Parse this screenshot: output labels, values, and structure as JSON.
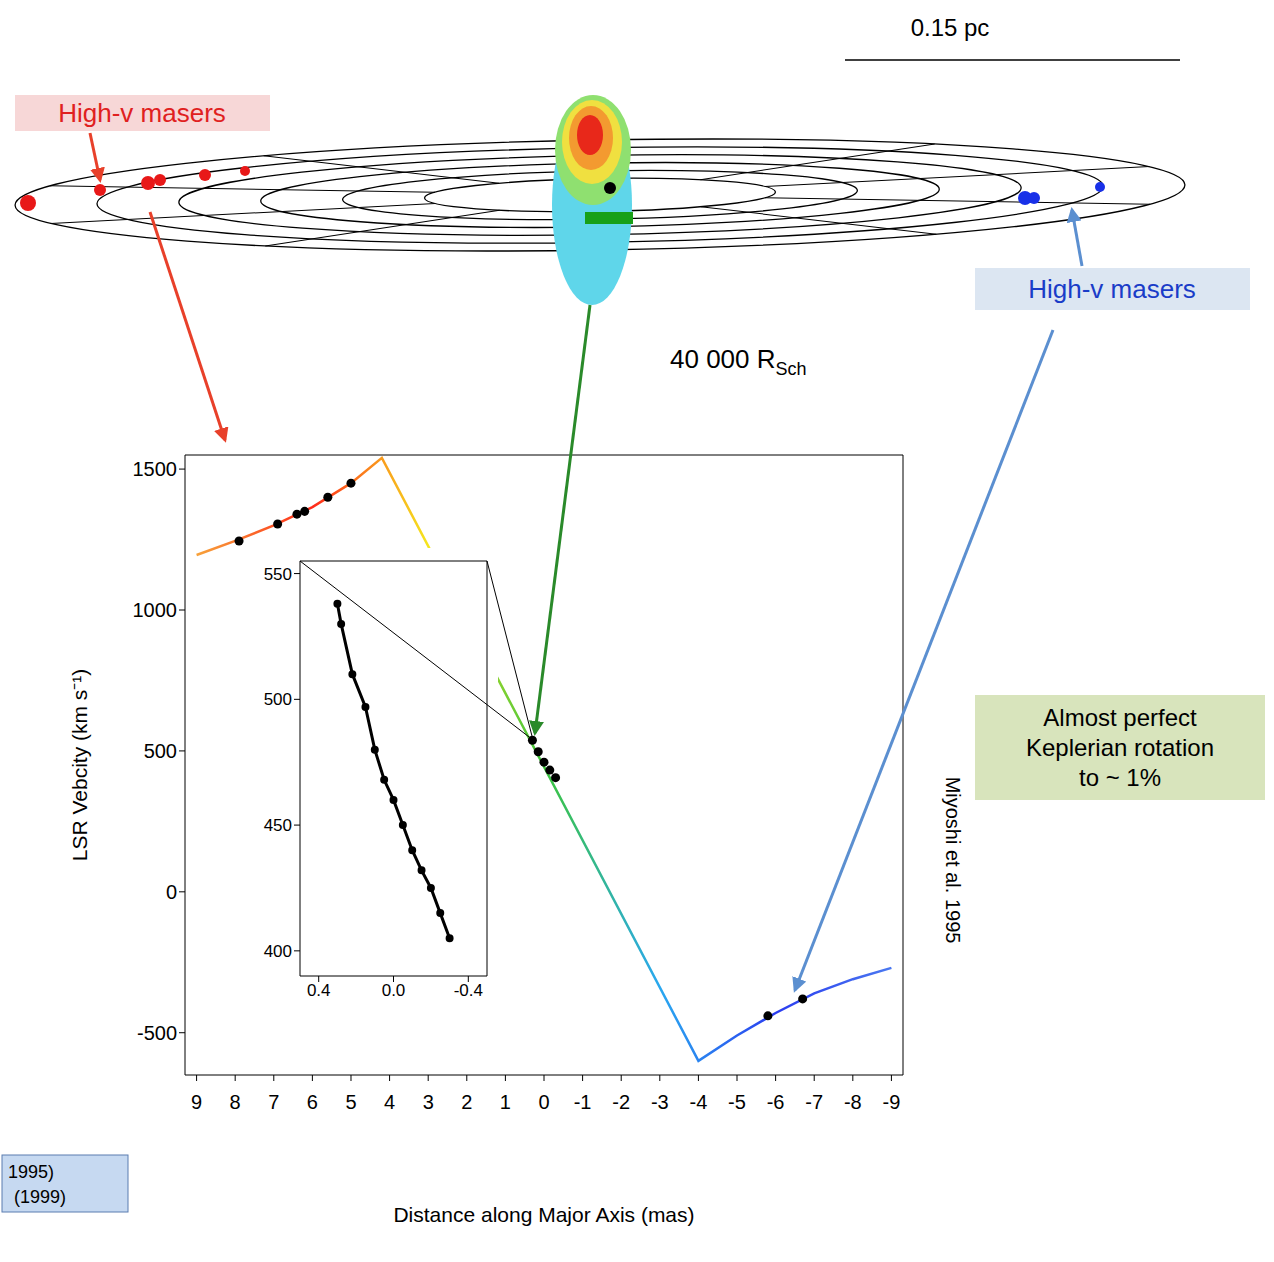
{
  "diagram": {
    "scale_bar_label": "0.15 pc",
    "radius_label": {
      "text": "40 000 R",
      "subscript": "Sch"
    },
    "red_label": "High-v masers",
    "blue_label": "High-v masers",
    "annotation": [
      "Almost perfect",
      "Keplerian rotation",
      "to ~ 1%"
    ],
    "credit": "Miyoshi et al. 1995",
    "references": [
      "1995)",
      "(1999)"
    ]
  },
  "chart_data": [
    {
      "type": "line",
      "x_label": "Distance along Major Axis (mas)",
      "y_label": "LSR Vebcity (km s⁻¹)",
      "xlim": [
        9.3,
        -9.3
      ],
      "xticks": [
        9,
        8,
        7,
        6,
        5,
        4,
        3,
        2,
        1,
        0,
        -1,
        -2,
        -3,
        -4,
        -5,
        -6,
        -7,
        -8,
        -9
      ],
      "ylim": [
        -650,
        1550
      ],
      "yticks": [
        -500,
        0,
        500,
        1000,
        1500
      ],
      "grid": false,
      "series": [
        {
          "type": "line",
          "colors": [
            "#f7a23a",
            "#ff2a1a",
            "#f5e61e",
            "#3cc43c",
            "#2aa8f0",
            "#2a3cf0",
            "#4a78f0"
          ],
          "x": [
            9,
            8,
            7,
            6,
            5,
            4.2,
            -4,
            -5,
            -6,
            -7,
            -8,
            -9
          ],
          "values": [
            1195,
            1245,
            1300,
            1365,
            1450,
            1540,
            -600,
            -510,
            -430,
            -360,
            -310,
            -270
          ]
        },
        {
          "type": "scatter",
          "color": "#000000",
          "marker": "circle",
          "x": [
            7.9,
            6.9,
            6.4,
            6.2,
            5.6,
            5.0,
            0.3,
            0.15,
            0,
            -0.15,
            -0.3,
            -5.8,
            -6.7
          ],
          "values": [
            1245,
            1305,
            1340,
            1350,
            1400,
            1450,
            538,
            497,
            460,
            432,
            405,
            -440,
            -380
          ]
        }
      ]
    },
    {
      "type": "line",
      "xlim": [
        0.5,
        -0.5
      ],
      "xticks": [
        0.4,
        {
          "value": 0,
          "label": "0.0"
        },
        -0.4
      ],
      "ylim": [
        390,
        555
      ],
      "yticks": [
        400,
        450,
        500,
        550
      ],
      "grid": false,
      "series": [
        {
          "type": "line",
          "color": "#000000",
          "marker": "circle",
          "x": [
            0.3,
            0.28,
            0.22,
            0.15,
            0.1,
            0.05,
            0.0,
            -0.05,
            -0.1,
            -0.15,
            -0.2,
            -0.25,
            -0.3
          ],
          "values": [
            538,
            530,
            510,
            497,
            480,
            468,
            460,
            450,
            440,
            432,
            425,
            415,
            405
          ]
        }
      ]
    }
  ]
}
